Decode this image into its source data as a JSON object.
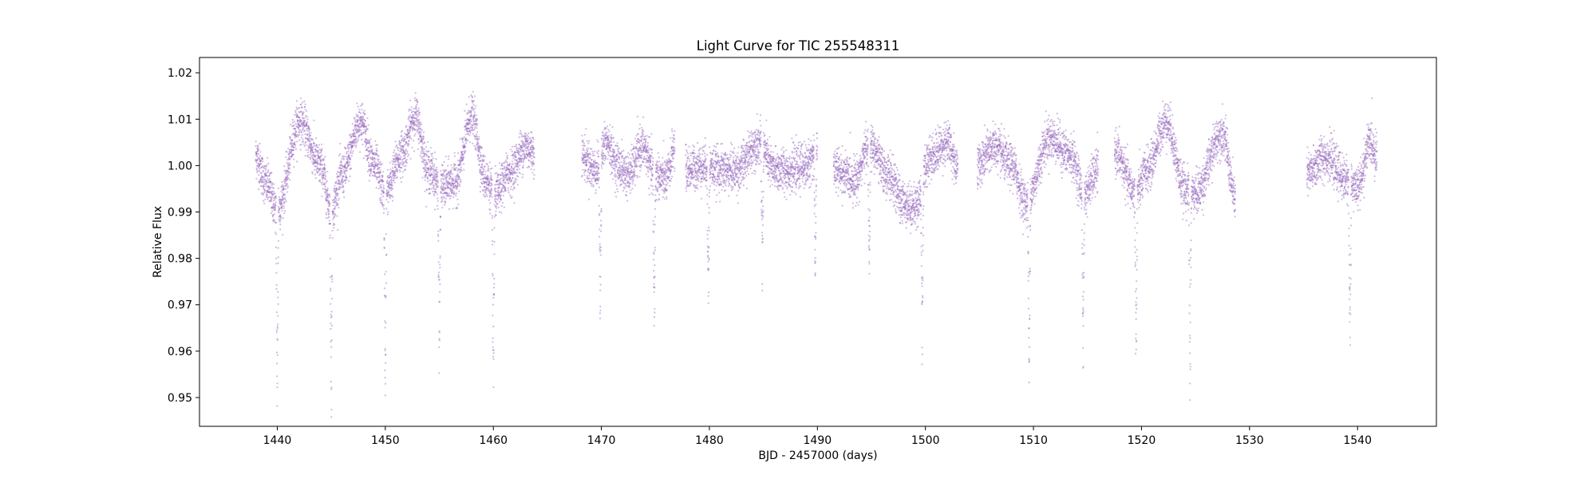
{
  "chart_data": {
    "type": "scatter",
    "title": "Light Curve for TIC 255548311",
    "xlabel": "BJD - 2457000 (days)",
    "ylabel": "Relative Flux",
    "xlim": [
      1432.8,
      1547.3
    ],
    "ylim": [
      0.9438,
      1.0233
    ],
    "xticks": [
      1440,
      1450,
      1460,
      1470,
      1480,
      1490,
      1500,
      1510,
      1520,
      1530,
      1540
    ],
    "yticks": [
      0.95,
      0.96,
      0.97,
      0.98,
      0.99,
      1.0,
      1.01,
      1.02
    ],
    "ytick_labels": [
      "0.95",
      "0.96",
      "0.97",
      "0.98",
      "0.99",
      "1.00",
      "1.01",
      "1.02"
    ],
    "grid": false,
    "colors": {
      "points": "#9467bd"
    },
    "series": [
      {
        "segments": [
          {
            "x": [
              1438.0,
              1439.0,
              1440.0,
              1442.1,
              1444.0,
              1445.0,
              1446.0,
              1447.7,
              1449.0,
              1450.0,
              1451.5,
              1452.8,
              1454.0,
              1455.2,
              1456.5,
              1458.0,
              1459.3,
              1460.2,
              1461.5,
              1463.0,
              1463.8
            ],
            "y": [
              1.002,
              0.996,
              0.9905,
              1.0095,
              1.0,
              0.9905,
              0.998,
              1.0095,
              1.0,
              0.994,
              1.0025,
              1.0105,
              0.999,
              0.9955,
              0.9965,
              1.0105,
              0.997,
              0.9935,
              0.9985,
              1.004,
              1.003
            ]
          },
          {
            "x": [
              1468.2,
              1469.5,
              1470.5,
              1471.5,
              1472.5,
              1473.8,
              1475.0,
              1476.0,
              1476.8
            ],
            "y": [
              1.002,
              0.999,
              1.005,
              1.0,
              0.998,
              1.004,
              0.998,
              0.997,
              1.004
            ]
          },
          {
            "x": [
              1477.8,
              1479.5,
              1481.0,
              1482.5,
              1484.6,
              1486.0,
              1487.5,
              1489.0,
              1490.0
            ],
            "y": [
              0.999,
              1.0,
              0.999,
              0.999,
              1.005,
              0.999,
              0.999,
              1.0,
              1.004
            ]
          },
          {
            "x": [
              1491.5,
              1493.5,
              1494.8,
              1496.5,
              1498.0,
              1499.0,
              1500.5,
              1502.0,
              1503.0
            ],
            "y": [
              0.999,
              0.997,
              1.0045,
              0.998,
              0.992,
              0.991,
              1.002,
              1.005,
              1.0
            ]
          },
          {
            "x": [
              1504.8,
              1506.3,
              1508.0,
              1509.3,
              1511.5,
              1513.5,
              1514.7,
              1516.0
            ],
            "y": [
              1.0,
              1.004,
              1.0,
              0.992,
              1.006,
              1.002,
              0.994,
              0.999
            ]
          },
          {
            "x": [
              1517.5,
              1519.5,
              1520.5,
              1522.3,
              1524.0,
              1525.0,
              1527.5,
              1528.7
            ],
            "y": [
              1.003,
              0.994,
              0.999,
              1.0095,
              0.995,
              0.994,
              1.007,
              0.993
            ]
          },
          {
            "x": [
              1535.3,
              1537.0,
              1539.0,
              1540.0,
              1541.2,
              1541.8
            ],
            "y": [
              0.998,
              1.002,
              0.997,
              0.995,
              1.005,
              1.002
            ]
          }
        ],
        "scatter_sigma": 0.0023,
        "eclipses": [
          {
            "t": 1440.0,
            "depth": 0.9545
          },
          {
            "t": 1445.0,
            "depth": 0.953
          },
          {
            "t": 1450.0,
            "depth": 0.955
          },
          {
            "t": 1455.0,
            "depth": 0.954
          },
          {
            "t": 1460.0,
            "depth": 0.953
          },
          {
            "t": 1469.9,
            "depth": 0.961
          },
          {
            "t": 1474.9,
            "depth": 0.9595
          },
          {
            "t": 1479.9,
            "depth": 0.962
          },
          {
            "t": 1484.9,
            "depth": 0.967
          },
          {
            "t": 1489.8,
            "depth": 0.966
          },
          {
            "t": 1494.8,
            "depth": 0.966
          },
          {
            "t": 1499.7,
            "depth": 0.96
          },
          {
            "t": 1509.6,
            "depth": 0.959
          },
          {
            "t": 1514.6,
            "depth": 0.9585
          },
          {
            "t": 1519.5,
            "depth": 0.958
          },
          {
            "t": 1524.5,
            "depth": 0.953
          },
          {
            "t": 1539.3,
            "depth": 0.957
          }
        ]
      }
    ]
  }
}
